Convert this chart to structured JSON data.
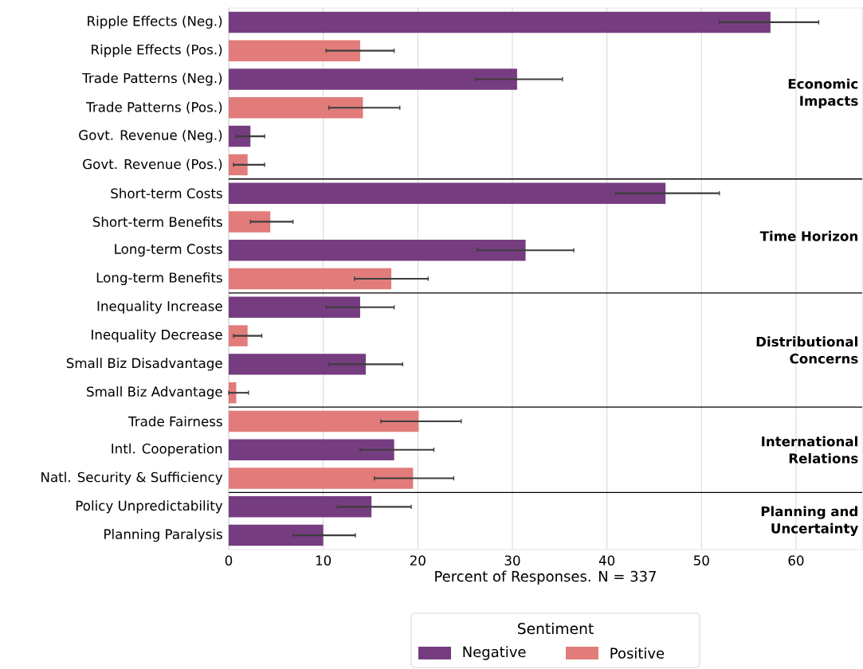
{
  "chart_data": {
    "type": "bar",
    "orientation": "horizontal",
    "xlabel": "Percent of Responses. N = 337",
    "legend_title": "Sentiment",
    "legend": "bottom",
    "grid": "x",
    "categories": [
      "Ripple Effects (Neg.)",
      "Ripple Effects (Pos.)",
      "Trade Patterns (Neg.)",
      "Trade Patterns (Pos.)",
      "Govt. Revenue (Neg.)",
      "Govt. Revenue (Pos.)",
      "Short-term Costs",
      "Short-term Benefits",
      "Long-term Costs",
      "Long-term Benefits",
      "Inequality Increase",
      "Inequality Decrease",
      "Small Biz Disadvantage",
      "Small Biz Advantage",
      "Trade Fairness",
      "Intl. Cooperation",
      "Natl. Security & Sufficiency",
      "Policy Unpredictability",
      "Planning Paralysis"
    ],
    "series": [
      {
        "name": "Negative",
        "color": "#763c80",
        "values": [
          57.3,
          null,
          30.5,
          null,
          2.3,
          null,
          46.2,
          null,
          31.4,
          null,
          13.9,
          null,
          14.5,
          null,
          null,
          17.5,
          null,
          15.1,
          10.0
        ],
        "errors": [
          [
            51.9,
            62.4
          ],
          null,
          [
            26.1,
            35.3
          ],
          null,
          [
            0.8,
            3.8
          ],
          null,
          [
            40.9,
            51.9
          ],
          null,
          [
            26.3,
            36.5
          ],
          null,
          [
            10.3,
            17.5
          ],
          null,
          [
            10.6,
            18.4
          ],
          null,
          null,
          [
            13.9,
            21.7
          ],
          null,
          [
            11.5,
            19.3
          ],
          [
            6.8,
            13.4
          ]
        ]
      },
      {
        "name": "Positive",
        "color": "#e17c7a",
        "values": [
          null,
          13.9,
          null,
          14.2,
          null,
          2.0,
          null,
          4.4,
          null,
          17.2,
          null,
          2.0,
          null,
          0.8,
          20.1,
          null,
          19.5,
          null,
          null
        ],
        "errors": [
          null,
          [
            10.3,
            17.5
          ],
          null,
          [
            10.6,
            18.1
          ],
          null,
          [
            0.5,
            3.8
          ],
          null,
          [
            2.3,
            6.8
          ],
          null,
          [
            13.3,
            21.1
          ],
          null,
          [
            0.5,
            3.5
          ],
          null,
          [
            0.0,
            2.1
          ],
          [
            16.1,
            24.6
          ],
          null,
          [
            15.4,
            23.8
          ],
          null,
          null
        ]
      }
    ],
    "annotations": [
      "Economic Impacts",
      "Time Horizon",
      "Distributional Concerns",
      "International Relations",
      "Planning and Uncertainty"
    ],
    "xlim": [
      0,
      67
    ],
    "xticks": [
      0,
      10,
      20,
      30,
      40,
      50,
      60
    ]
  }
}
